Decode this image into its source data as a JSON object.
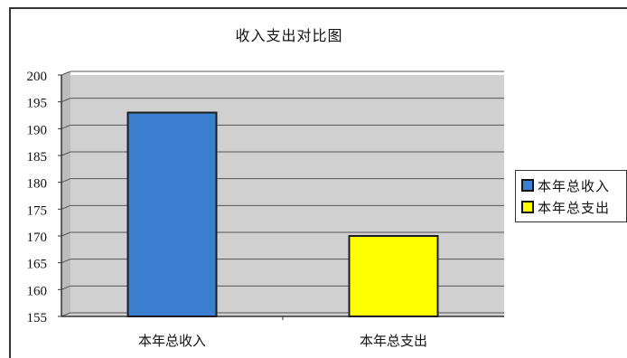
{
  "chart_data": {
    "type": "bar",
    "title": "收入支出对比图",
    "categories": [
      "本年总收入",
      "本年总支出"
    ],
    "series": [
      {
        "name": "本年总收入",
        "values": [
          193,
          null
        ]
      },
      {
        "name": "本年总支出",
        "values": [
          null,
          170
        ]
      }
    ],
    "values": [
      193,
      170
    ],
    "xlabel": "",
    "ylabel": "",
    "ylim": [
      155,
      200
    ],
    "yticks": [
      "155",
      "160",
      "165",
      "170",
      "175",
      "180",
      "185",
      "190",
      "195",
      "200"
    ],
    "grid": true,
    "legend_position": "right",
    "colors": {
      "plot_background": "#d0d0d0",
      "income": "#3a7fd0",
      "expense": "#ffff00",
      "bar_edge": "#1c1c1c",
      "grid": "#555555"
    }
  },
  "legend": {
    "items": [
      {
        "label": "本年总收入",
        "color": "#3a7fd0"
      },
      {
        "label": "本年总支出",
        "color": "#ffff00"
      }
    ]
  }
}
